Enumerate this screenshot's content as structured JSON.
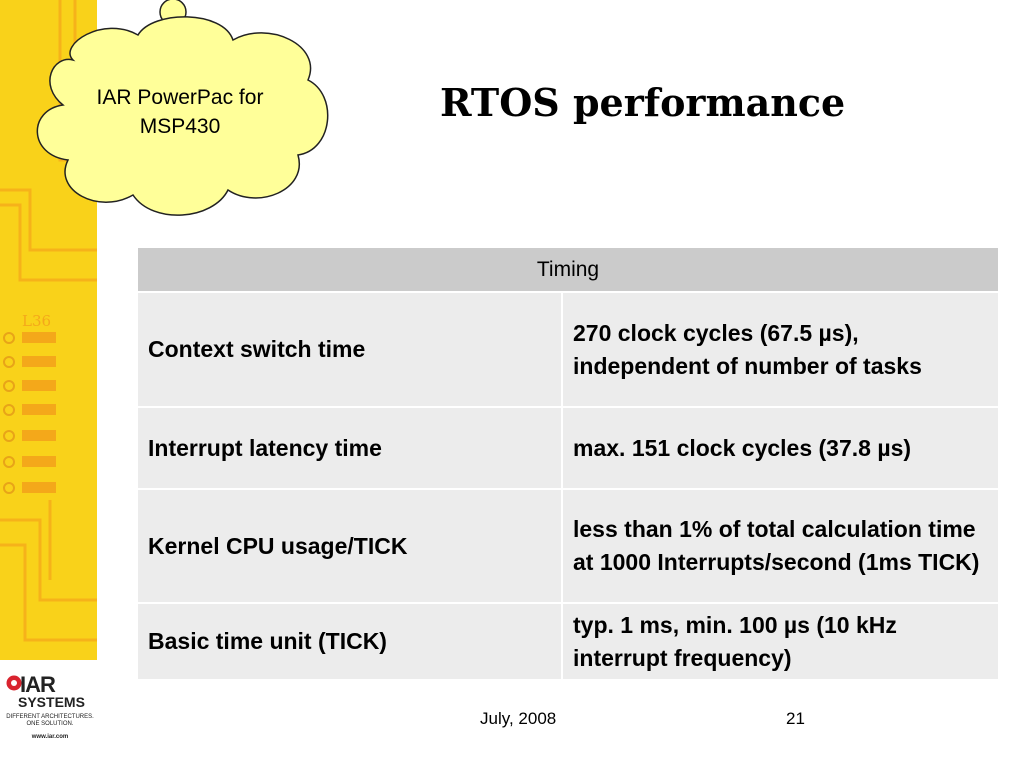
{
  "slide": {
    "title": "RTOS performance",
    "callout": "IAR PowerPac for MSP430",
    "footer_date": "July, 2008",
    "page_number": "21",
    "chip_label": "L36"
  },
  "table": {
    "header": "Timing",
    "rows": [
      {
        "label": "Context switch time",
        "value": "270 clock cycles (67.5 µs), independent of number of tasks"
      },
      {
        "label": "Interrupt latency time",
        "value": "max. 151 clock cycles (37.8 µs)"
      },
      {
        "label": "Kernel CPU usage/TICK",
        "value": "less than 1% of total calculation time at 1000 Interrupts/second (1ms TICK)"
      },
      {
        "label": "Basic time unit (TICK)",
        "value": "typ. 1 ms, min. 100 µs (10 kHz interrupt frequency)"
      }
    ]
  },
  "logo": {
    "brand": "IAR",
    "brand_line2": "SYSTEMS",
    "tagline": "DIFFERENT ARCHITECTURES. ONE SOLUTION.",
    "url": "www.iar.com"
  },
  "colors": {
    "accent_yellow": "#f9d21a",
    "cloud_fill": "#ffff99",
    "table_header": "#cbcbcb",
    "table_body": "#ececec",
    "logo_red": "#d9232e"
  }
}
